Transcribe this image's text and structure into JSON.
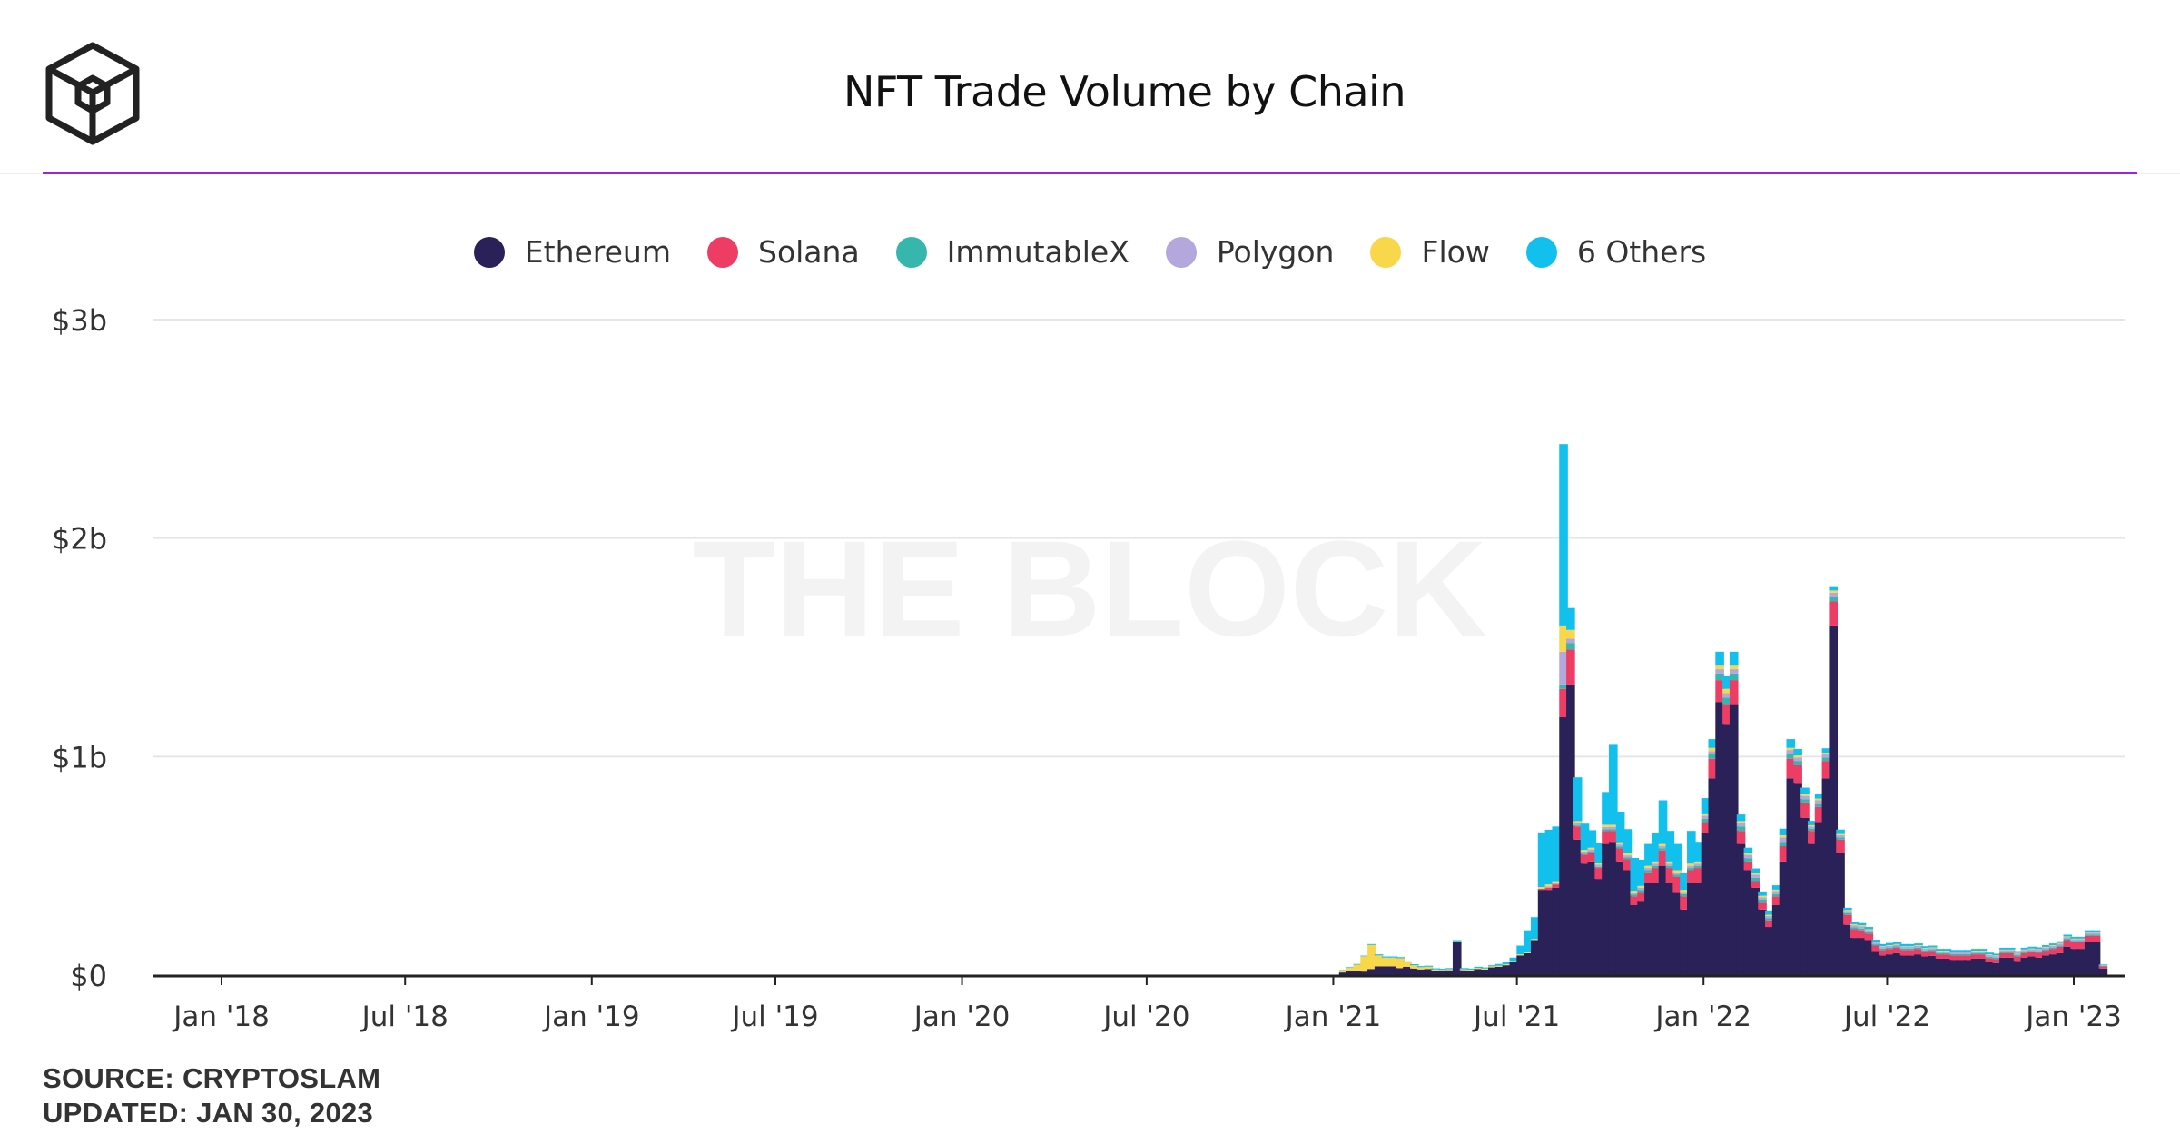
{
  "header": {
    "title": "NFT Trade Volume by Chain",
    "logo_icon": "the-block-cube-logo-icon"
  },
  "watermark": "THE BLOCK",
  "footer": {
    "source": "SOURCE: CRYPTOSLAM",
    "updated": "UPDATED: JAN 30, 2023"
  },
  "colors": {
    "accent_rule": "#9b24e0",
    "Ethereum": "#2a2158",
    "Solana": "#ee3d65",
    "ImmutableX": "#36b6ac",
    "Polygon": "#b3a7db",
    "Flow": "#f9d74a",
    "6 Others": "#12c0ee"
  },
  "chart_data": {
    "type": "bar",
    "stacked": true,
    "ylabel": "",
    "xlabel": "",
    "ylim": [
      0,
      3000
    ],
    "value_unit": "$m",
    "y_ticks": [
      {
        "value": 0,
        "label": "$0"
      },
      {
        "value": 1000,
        "label": "$1b"
      },
      {
        "value": 2000,
        "label": "$2b"
      },
      {
        "value": 3000,
        "label": "$3b"
      }
    ],
    "x_ticks": [
      {
        "date": "2018-01-01",
        "label": "Jan '18"
      },
      {
        "date": "2018-07-01",
        "label": "Jul '18"
      },
      {
        "date": "2019-01-01",
        "label": "Jan '19"
      },
      {
        "date": "2019-07-01",
        "label": "Jul '19"
      },
      {
        "date": "2020-01-01",
        "label": "Jan '20"
      },
      {
        "date": "2020-07-01",
        "label": "Jul '20"
      },
      {
        "date": "2021-01-01",
        "label": "Jan '21"
      },
      {
        "date": "2021-07-01",
        "label": "Jul '21"
      },
      {
        "date": "2022-01-01",
        "label": "Jan '22"
      },
      {
        "date": "2022-07-01",
        "label": "Jul '22"
      },
      {
        "date": "2023-01-01",
        "label": "Jan '23"
      }
    ],
    "legend": [
      "Ethereum",
      "Solana",
      "ImmutableX",
      "Polygon",
      "Flow",
      "6 Others"
    ],
    "grid": true,
    "legend_position": "top-center",
    "x": [
      "2021-01-11",
      "2021-01-18",
      "2021-01-25",
      "2021-02-01",
      "2021-02-08",
      "2021-02-15",
      "2021-02-22",
      "2021-03-01",
      "2021-03-08",
      "2021-03-15",
      "2021-03-22",
      "2021-03-29",
      "2021-04-05",
      "2021-04-12",
      "2021-04-19",
      "2021-04-26",
      "2021-05-03",
      "2021-05-10",
      "2021-05-17",
      "2021-05-24",
      "2021-05-31",
      "2021-06-07",
      "2021-06-14",
      "2021-06-21",
      "2021-06-28",
      "2021-07-05",
      "2021-07-12",
      "2021-07-19",
      "2021-07-26",
      "2021-08-02",
      "2021-08-09",
      "2021-08-16",
      "2021-08-23",
      "2021-08-30",
      "2021-09-06",
      "2021-09-13",
      "2021-09-20",
      "2021-09-27",
      "2021-10-04",
      "2021-10-11",
      "2021-10-18",
      "2021-10-25",
      "2021-11-01",
      "2021-11-08",
      "2021-11-15",
      "2021-11-22",
      "2021-11-29",
      "2021-12-06",
      "2021-12-13",
      "2021-12-20",
      "2021-12-27",
      "2022-01-03",
      "2022-01-10",
      "2022-01-17",
      "2022-01-24",
      "2022-01-31",
      "2022-02-07",
      "2022-02-14",
      "2022-02-21",
      "2022-02-28",
      "2022-03-07",
      "2022-03-14",
      "2022-03-21",
      "2022-03-28",
      "2022-04-04",
      "2022-04-11",
      "2022-04-18",
      "2022-04-25",
      "2022-05-02",
      "2022-05-09",
      "2022-05-16",
      "2022-05-23",
      "2022-05-30",
      "2022-06-06",
      "2022-06-13",
      "2022-06-20",
      "2022-06-27",
      "2022-07-04",
      "2022-07-11",
      "2022-07-18",
      "2022-07-25",
      "2022-08-01",
      "2022-08-08",
      "2022-08-15",
      "2022-08-22",
      "2022-08-29",
      "2022-09-05",
      "2022-09-12",
      "2022-09-19",
      "2022-09-26",
      "2022-10-03",
      "2022-10-10",
      "2022-10-17",
      "2022-10-24",
      "2022-10-31",
      "2022-11-07",
      "2022-11-14",
      "2022-11-21",
      "2022-11-28",
      "2022-12-05",
      "2022-12-12",
      "2022-12-19",
      "2022-12-26",
      "2023-01-02",
      "2023-01-09",
      "2023-01-16",
      "2023-01-23",
      "2023-01-30"
    ],
    "series": [
      {
        "name": "Ethereum",
        "values": [
          12,
          18,
          18,
          16,
          28,
          40,
          40,
          40,
          32,
          38,
          30,
          26,
          28,
          18,
          18,
          22,
          150,
          22,
          20,
          28,
          25,
          35,
          38,
          45,
          60,
          90,
          100,
          160,
          390,
          390,
          400,
          1180,
          1330,
          620,
          510,
          520,
          440,
          600,
          610,
          520,
          480,
          320,
          340,
          420,
          420,
          500,
          420,
          380,
          300,
          420,
          420,
          650,
          900,
          1250,
          1150,
          1240,
          600,
          480,
          400,
          300,
          220,
          320,
          520,
          900,
          880,
          720,
          600,
          700,
          900,
          1600,
          560,
          230,
          170,
          170,
          160,
          110,
          90,
          95,
          100,
          90,
          90,
          95,
          85,
          88,
          75,
          75,
          70,
          70,
          70,
          75,
          75,
          60,
          55,
          80,
          80,
          65,
          80,
          85,
          80,
          90,
          95,
          100,
          130,
          120,
          120,
          150,
          150,
          30
        ]
      },
      {
        "name": "Solana",
        "values": [
          0,
          0,
          0,
          0,
          0,
          0,
          0,
          0,
          0,
          0,
          0,
          0,
          0,
          0,
          0,
          0,
          0,
          0,
          0,
          0,
          0,
          0,
          0,
          0,
          0,
          0,
          0,
          0,
          5,
          10,
          15,
          130,
          160,
          60,
          40,
          40,
          50,
          60,
          50,
          60,
          50,
          40,
          40,
          50,
          70,
          70,
          70,
          70,
          60,
          60,
          70,
          50,
          90,
          100,
          90,
          110,
          60,
          40,
          30,
          30,
          30,
          40,
          70,
          90,
          80,
          70,
          60,
          70,
          80,
          110,
          60,
          45,
          40,
          35,
          30,
          25,
          25,
          25,
          25,
          25,
          25,
          25,
          22,
          22,
          20,
          20,
          20,
          20,
          20,
          20,
          20,
          18,
          18,
          20,
          20,
          20,
          20,
          20,
          22,
          22,
          25,
          30,
          30,
          30,
          30,
          30,
          30,
          10
        ]
      },
      {
        "name": "ImmutableX",
        "values": [
          0,
          0,
          0,
          0,
          0,
          0,
          0,
          0,
          0,
          0,
          0,
          0,
          0,
          0,
          0,
          0,
          0,
          0,
          0,
          0,
          0,
          0,
          0,
          0,
          0,
          0,
          0,
          0,
          0,
          0,
          0,
          20,
          30,
          5,
          5,
          5,
          5,
          8,
          8,
          8,
          8,
          8,
          10,
          10,
          10,
          10,
          10,
          10,
          10,
          10,
          10,
          15,
          20,
          30,
          30,
          30,
          20,
          15,
          15,
          15,
          10,
          10,
          20,
          20,
          20,
          15,
          10,
          15,
          15,
          20,
          10,
          8,
          8,
          8,
          8,
          6,
          6,
          6,
          6,
          6,
          6,
          6,
          6,
          6,
          6,
          6,
          6,
          6,
          6,
          6,
          6,
          6,
          6,
          6,
          6,
          6,
          6,
          6,
          6,
          6,
          6,
          6,
          6,
          6,
          6,
          6,
          6,
          3
        ]
      },
      {
        "name": "Polygon",
        "values": [
          0,
          0,
          0,
          0,
          0,
          0,
          0,
          0,
          0,
          0,
          0,
          0,
          0,
          0,
          0,
          0,
          0,
          0,
          0,
          0,
          0,
          0,
          0,
          0,
          0,
          0,
          0,
          0,
          0,
          5,
          5,
          150,
          20,
          10,
          10,
          10,
          10,
          10,
          10,
          10,
          10,
          10,
          10,
          10,
          10,
          10,
          10,
          10,
          10,
          10,
          10,
          15,
          15,
          20,
          20,
          20,
          15,
          15,
          15,
          10,
          10,
          15,
          20,
          20,
          15,
          15,
          10,
          15,
          15,
          20,
          10,
          10,
          10,
          10,
          8,
          8,
          8,
          8,
          8,
          8,
          8,
          8,
          8,
          8,
          8,
          8,
          8,
          8,
          8,
          8,
          8,
          8,
          8,
          8,
          8,
          8,
          8,
          8,
          8,
          8,
          8,
          8,
          8,
          8,
          8,
          8,
          8,
          2
        ]
      },
      {
        "name": "Flow",
        "values": [
          10,
          15,
          30,
          70,
          110,
          50,
          40,
          40,
          45,
          20,
          15,
          10,
          10,
          8,
          6,
          5,
          5,
          5,
          5,
          5,
          5,
          5,
          5,
          5,
          5,
          5,
          5,
          5,
          8,
          10,
          10,
          120,
          40,
          10,
          8,
          8,
          8,
          10,
          10,
          10,
          10,
          8,
          8,
          10,
          10,
          10,
          10,
          10,
          10,
          10,
          10,
          10,
          15,
          20,
          20,
          20,
          10,
          8,
          8,
          8,
          6,
          6,
          10,
          10,
          10,
          8,
          6,
          8,
          8,
          10,
          6,
          5,
          5,
          5,
          4,
          3,
          3,
          3,
          3,
          3,
          3,
          3,
          3,
          3,
          3,
          3,
          3,
          3,
          3,
          3,
          3,
          3,
          3,
          3,
          3,
          3,
          3,
          3,
          3,
          3,
          3,
          3,
          3,
          3,
          3,
          3,
          3,
          1
        ]
      },
      {
        "name": "6 Others",
        "values": [
          2,
          3,
          3,
          3,
          4,
          5,
          5,
          5,
          5,
          5,
          5,
          5,
          5,
          5,
          5,
          5,
          5,
          5,
          5,
          5,
          5,
          5,
          8,
          10,
          15,
          40,
          100,
          100,
          250,
          250,
          250,
          830,
          100,
          200,
          120,
          80,
          90,
          150,
          370,
          140,
          110,
          150,
          120,
          100,
          130,
          200,
          140,
          120,
          80,
          150,
          90,
          70,
          40,
          60,
          60,
          60,
          30,
          25,
          20,
          20,
          20,
          20,
          30,
          40,
          30,
          30,
          20,
          20,
          20,
          20,
          20,
          10,
          10,
          10,
          10,
          10,
          10,
          10,
          10,
          10,
          10,
          8,
          8,
          8,
          8,
          8,
          8,
          8,
          8,
          8,
          8,
          8,
          8,
          8,
          8,
          8,
          8,
          8,
          8,
          8,
          8,
          8,
          8,
          8,
          8,
          8,
          8,
          3
        ]
      }
    ]
  }
}
